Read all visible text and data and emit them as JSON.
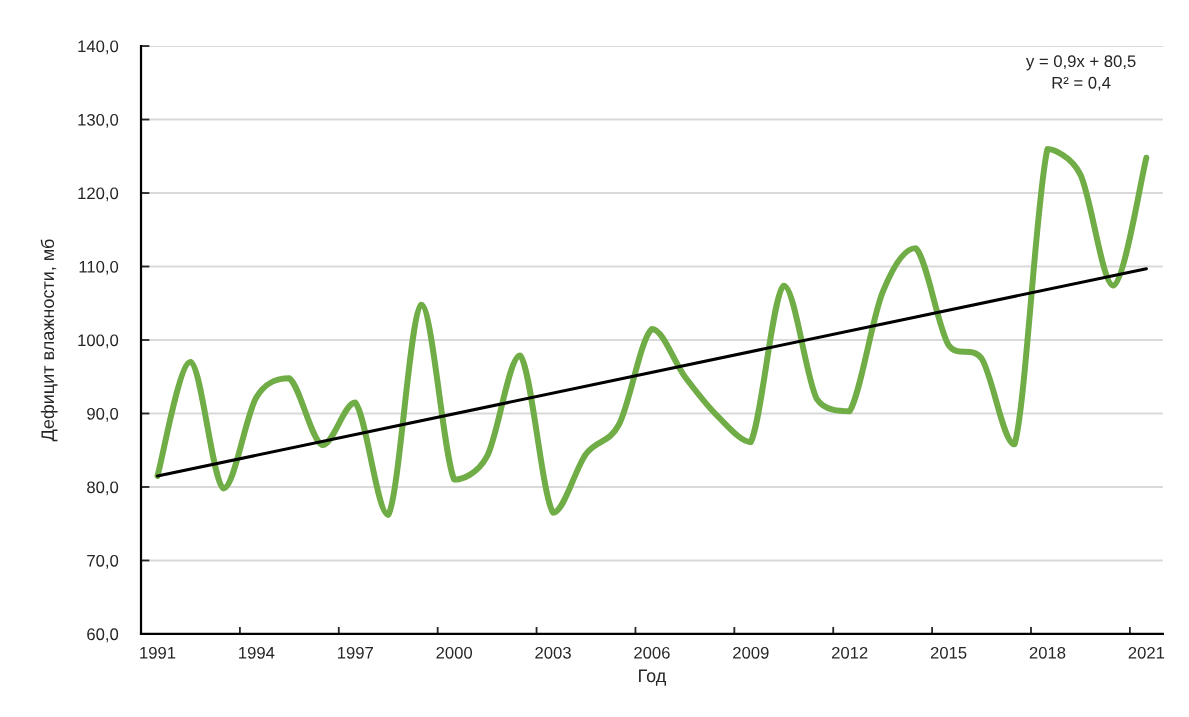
{
  "chart_data": {
    "type": "line",
    "xlabel": "Год",
    "ylabel": "Дефицит влажности, мб",
    "annotations": [
      "y = 0,9x + 80,5\nR² = 0,4"
    ],
    "x": [
      1991,
      1992,
      1993,
      1994,
      1995,
      1996,
      1997,
      1998,
      1999,
      2000,
      2001,
      2002,
      2003,
      2004,
      2005,
      2006,
      2007,
      2008,
      2009,
      2010,
      2011,
      2012,
      2013,
      2014,
      2015,
      2016,
      2017,
      2018,
      2019,
      2020,
      2021
    ],
    "series": [
      {
        "color": "#70ad47",
        "values": [
          81.5,
          97.0,
          79.8,
          92.2,
          94.8,
          85.7,
          91.5,
          76.2,
          104.8,
          81.0,
          84.2,
          97.9,
          76.5,
          84.5,
          88.5,
          101.5,
          95.0,
          89.6,
          86.1,
          107.4,
          92.0,
          90.3,
          106.5,
          112.5,
          99.3,
          97.5,
          85.8,
          126.0,
          122.5,
          107.4,
          124.8
        ]
      },
      {
        "type": "line",
        "color": "#000000",
        "x": [
          1991,
          2021
        ],
        "values": [
          81.5,
          109.7
        ]
      }
    ],
    "xlim": [
      1990.5,
      2021.5
    ],
    "xticks": [
      1991,
      {
        "value": 1993.5,
        "label": null
      },
      1994,
      {
        "value": 1996.5,
        "label": null
      },
      1997,
      {
        "value": 1999.5,
        "label": null
      },
      2000,
      {
        "value": 2002.5,
        "label": null
      },
      2003,
      {
        "value": 2005.5,
        "label": null
      },
      2006,
      {
        "value": 2008.5,
        "label": null
      },
      2009,
      {
        "value": 2011.5,
        "label": null
      },
      2012,
      {
        "value": 2014.5,
        "label": null
      },
      2015,
      {
        "value": 2017.5,
        "label": null
      },
      2018,
      {
        "value": 2020.5,
        "label": null
      },
      2021
    ],
    "ylim": [
      60,
      140
    ],
    "yticks": [
      {
        "value": 60,
        "label": "60,0"
      },
      {
        "value": 70,
        "label": "70,0"
      },
      {
        "value": 80,
        "label": "80,0"
      },
      {
        "value": 90,
        "label": "90,0"
      },
      {
        "value": 100,
        "label": "100,0"
      },
      {
        "value": 110,
        "label": "110,0"
      },
      {
        "value": 120,
        "label": "120,0"
      },
      {
        "value": 130,
        "label": "130,0"
      },
      {
        "value": 140,
        "label": "140,0"
      }
    ],
    "grid": "y",
    "marker": "none",
    "line_style": "solid"
  }
}
